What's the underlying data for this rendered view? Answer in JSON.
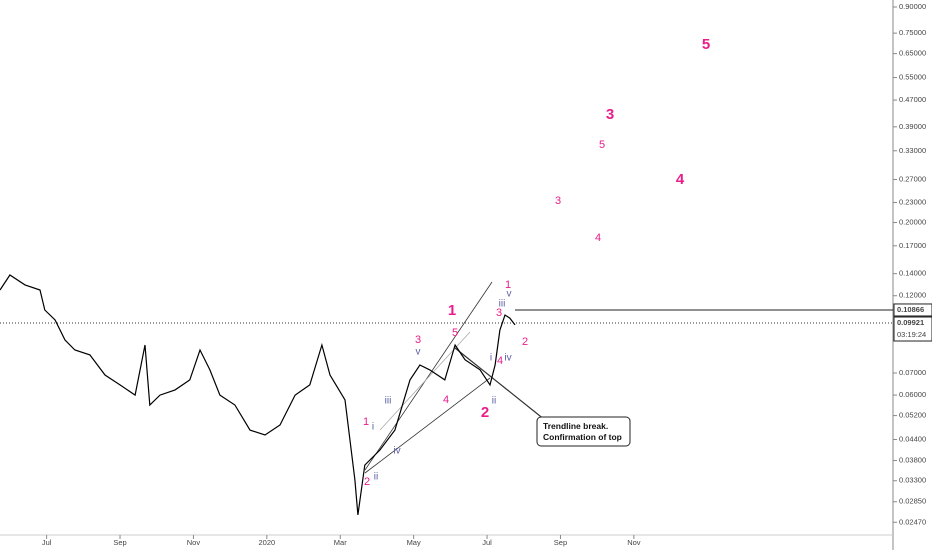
{
  "chart_data": {
    "type": "line",
    "log_scale": true,
    "series": [
      {
        "color": "#000000",
        "x": [
          -0.27,
          0,
          0.41,
          0.82,
          0.95,
          1.23,
          1.5,
          1.77,
          2.18,
          2.59,
          3.0,
          3.41,
          3.68,
          3.81,
          4.09,
          4.5,
          4.9,
          5.18,
          5.45,
          5.72,
          6.13,
          6.54,
          6.95,
          7.36,
          7.77,
          8.17,
          8.5,
          8.72,
          9.13,
          9.4,
          9.48,
          9.67,
          10.08,
          10.49,
          10.9,
          11.17,
          11.44,
          11.85,
          12.13,
          12.4,
          12.81,
          13.08,
          13.22,
          13.35,
          13.49,
          13.62,
          13.76
        ],
        "values": [
          0.1249,
          0.1387,
          0.1294,
          0.1249,
          0.1086,
          0.1013,
          0.0881,
          0.0822,
          0.0794,
          0.069,
          0.0644,
          0.06,
          0.0851,
          0.056,
          0.06,
          0.0622,
          0.0667,
          0.0822,
          0.0715,
          0.06,
          0.056,
          0.047,
          0.0454,
          0.0487,
          0.06,
          0.0644,
          0.0851,
          0.069,
          0.058,
          0.0332,
          0.026,
          0.0368,
          0.0409,
          0.047,
          0.0667,
          0.074,
          0.0715,
          0.0667,
          0.0851,
          0.0768,
          0.0715,
          0.0644,
          0.074,
          0.0945,
          0.1049,
          0.1027,
          0.0979
        ]
      }
    ],
    "xlim": [
      -0.27,
      24.06
    ],
    "xticks": [
      {
        "value": 1,
        "label": "Jul"
      },
      {
        "value": 3,
        "label": "Sep"
      },
      {
        "value": 5,
        "label": "Nov"
      },
      {
        "value": 7,
        "label": "2020"
      },
      {
        "value": 9,
        "label": "Mar"
      },
      {
        "value": 11,
        "label": "May"
      },
      {
        "value": 13,
        "label": "Jul"
      },
      {
        "value": 15,
        "label": "Sep"
      },
      {
        "value": 17,
        "label": "Nov"
      }
    ],
    "ylim": [
      0.0226,
      0.945
    ],
    "yticks": [
      {
        "value": 0.9,
        "label": "0.90000"
      },
      {
        "value": 0.75,
        "label": "0.75000"
      },
      {
        "value": 0.65,
        "label": "0.65000"
      },
      {
        "value": 0.55,
        "label": "0.55000"
      },
      {
        "value": 0.47,
        "label": "0.47000"
      },
      {
        "value": 0.39,
        "label": "0.39000"
      },
      {
        "value": 0.33,
        "label": "0.33000"
      },
      {
        "value": 0.27,
        "label": "0.27000"
      },
      {
        "value": 0.23,
        "label": "0.23000"
      },
      {
        "value": 0.2,
        "label": "0.20000"
      },
      {
        "value": 0.17,
        "label": "0.17000"
      },
      {
        "value": 0.14,
        "label": "0.14000"
      },
      {
        "value": 0.12,
        "label": "0.12000"
      },
      {
        "value": 0.07,
        "label": "0.07000"
      },
      {
        "value": 0.06,
        "label": "0.06000"
      },
      {
        "value": 0.052,
        "label": "0.05200"
      },
      {
        "value": 0.044,
        "label": "0.04400"
      },
      {
        "value": 0.038,
        "label": "0.03800"
      },
      {
        "value": 0.033,
        "label": "0.03300"
      },
      {
        "value": 0.0285,
        "label": "0.02850"
      },
      {
        "value": 0.0247,
        "label": "0.02470"
      }
    ],
    "level": {
      "value": 0.10866,
      "label": "0.10866"
    },
    "last_price": {
      "value": 0.09921,
      "label": "0.09921"
    },
    "countdown": "03:19:24",
    "waves_major": [
      "1",
      "2",
      "3",
      "4",
      "5"
    ],
    "waves_minor": [
      "1",
      "2",
      "3",
      "4",
      "5",
      "1",
      "2",
      "3",
      "4",
      "5",
      "3",
      "4"
    ],
    "waves_sub": [
      "i",
      "ii",
      "iii",
      "iv",
      "v",
      "i",
      "ii",
      "iii",
      "iv",
      "v"
    ],
    "annotation": [
      "Trendline break.",
      "Confirmation of top"
    ]
  }
}
